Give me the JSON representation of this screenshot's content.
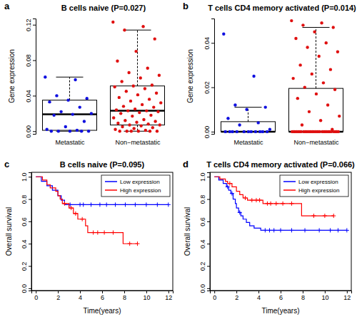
{
  "chart_data": [
    {
      "type": "box",
      "panel_label": "a",
      "title": "B cells naive (P=0.027)",
      "y_label": "Gene expression",
      "categories": [
        "Metastatic",
        "Non−metastatic"
      ],
      "colors": [
        "#1010e0",
        "#e01010"
      ],
      "ylim": [
        -0.003,
        0.127
      ],
      "yticks": [
        {
          "value": 0,
          "label": "0.00"
        },
        {
          "value": 0.04,
          "label": "0.04"
        },
        {
          "value": 0.08,
          "label": "0.08"
        },
        {
          "value": 0.12,
          "label": "0.12"
        }
      ],
      "boxes": [
        {
          "min": 0,
          "q1": 0.001,
          "median": 0.019,
          "q3": 0.035,
          "max": 0.061
        },
        {
          "min": 0,
          "q1": 0.007,
          "median": 0.023,
          "q3": 0.051,
          "max": 0.114
        }
      ],
      "points": [
        [
          0.061,
          0.058,
          0.04,
          0.037,
          0.035,
          0.033,
          0.027,
          0.022,
          0.02,
          0.019,
          0.018,
          0.011,
          0.005,
          0.002,
          0.001,
          0,
          0,
          0,
          0,
          0
        ],
        [
          0.123,
          0.118,
          0.114,
          0.104,
          0.09,
          0.079,
          0.071,
          0.066,
          0.063,
          0.06,
          0.056,
          0.052,
          0.051,
          0.05,
          0.048,
          0.045,
          0.043,
          0.041,
          0.038,
          0.036,
          0.034,
          0.032,
          0.03,
          0.028,
          0.027,
          0.025,
          0.024,
          0.023,
          0.023,
          0.022,
          0.021,
          0.02,
          0.018,
          0.017,
          0.015,
          0.013,
          0.012,
          0.011,
          0.01,
          0.009,
          0.008,
          0.007,
          0.007,
          0.006,
          0.005,
          0.004,
          0.003,
          0.002,
          0.001,
          0,
          0,
          0,
          0,
          0,
          0
        ]
      ]
    },
    {
      "type": "box",
      "panel_label": "b",
      "title": "T cells CD4 memory activated (P=0.014)",
      "y_label": "Gene expression",
      "categories": [
        "Metastatic",
        "Non−metastatic"
      ],
      "colors": [
        "#1010e0",
        "#e01010"
      ],
      "ylim": [
        -0.001,
        0.051
      ],
      "yticks": [
        {
          "value": 0,
          "label": "0.00"
        },
        {
          "value": 0.02,
          "label": "0.02"
        },
        {
          "value": 0.04,
          "label": "0.04"
        }
      ],
      "boxes": [
        {
          "min": 0,
          "q1": 0,
          "median": 0,
          "q3": 0.0045,
          "max": 0.011
        },
        {
          "min": 0,
          "q1": 0,
          "median": 0,
          "q3": 0.0195,
          "max": 0.047
        }
      ],
      "points": [
        [
          0.044,
          0.025,
          0.012,
          0.011,
          0.01,
          0.006,
          0.004,
          0.003,
          0.001,
          0,
          0,
          0,
          0,
          0,
          0,
          0,
          0,
          0,
          0,
          0
        ],
        [
          0.05,
          0.049,
          0.048,
          0.047,
          0.045,
          0.042,
          0.04,
          0.038,
          0.036,
          0.034,
          0.03,
          0.028,
          0.026,
          0.024,
          0.022,
          0.02,
          0.019,
          0.017,
          0.015,
          0.012,
          0.009,
          0.007,
          0.005,
          0.003,
          0.001,
          0,
          0,
          0,
          0,
          0,
          0,
          0,
          0,
          0,
          0,
          0,
          0,
          0,
          0,
          0,
          0,
          0,
          0,
          0,
          0,
          0,
          0,
          0,
          0,
          0,
          0,
          0,
          0,
          0,
          0
        ]
      ]
    },
    {
      "type": "step",
      "panel_label": "c",
      "title": "B cells naive (P=0.095)",
      "x_label": "Time(years)",
      "y_label": "Overall survival",
      "xlim": [
        -0.4,
        12.4
      ],
      "xticks": [
        0,
        2,
        4,
        6,
        8,
        10,
        12
      ],
      "ylim": [
        -0.02,
        1.04
      ],
      "yticks": [
        {
          "value": 0,
          "label": "0.0"
        },
        {
          "value": 0.2,
          "label": "0.2"
        },
        {
          "value": 0.4,
          "label": "0.4"
        },
        {
          "value": 0.6,
          "label": "0.6"
        },
        {
          "value": 0.8,
          "label": "0.8"
        },
        {
          "value": 1,
          "label": "1.0"
        }
      ],
      "legend": "top-right",
      "series": [
        {
          "name": "Low expression",
          "color": "#0000ff",
          "x": [
            0,
            0.5,
            1.0,
            1.5,
            2.0,
            2.3,
            2.6,
            12.0
          ],
          "values": [
            1,
            0.96,
            0.92,
            0.88,
            0.83,
            0.79,
            0.75,
            0.75
          ],
          "censor_x": [
            3.1,
            4.0,
            4.3,
            5.0,
            5.8,
            6.4,
            7.2,
            8.1,
            9.0,
            10.0,
            11.0,
            12.0
          ],
          "censor_y": [
            0.75,
            0.75,
            0.75,
            0.75,
            0.75,
            0.75,
            0.75,
            0.75,
            0.75,
            0.75,
            0.75,
            0.75
          ]
        },
        {
          "name": "High expression",
          "color": "#ff0000",
          "x": [
            0,
            0.6,
            1.0,
            1.3,
            1.8,
            2.0,
            2.2,
            2.4,
            3.0,
            3.4,
            3.8,
            4.5,
            4.7,
            7.9,
            9.2
          ],
          "values": [
            1,
            0.97,
            0.93,
            0.9,
            0.87,
            0.83,
            0.8,
            0.76,
            0.72,
            0.67,
            0.62,
            0.56,
            0.5,
            0.4,
            0.4
          ],
          "censor_x": [
            2.6,
            3.2,
            3.6,
            4.2,
            5.2,
            5.6,
            6.2,
            7.0,
            8.5,
            9.2
          ],
          "censor_y": [
            0.76,
            0.72,
            0.67,
            0.62,
            0.5,
            0.5,
            0.5,
            0.5,
            0.4,
            0.4
          ]
        }
      ]
    },
    {
      "type": "step",
      "panel_label": "d",
      "title": "T cells CD4 memory activated (P=0.066)",
      "x_label": "Time(years)",
      "y_label": "Overall survival",
      "xlim": [
        -0.4,
        12.4
      ],
      "xticks": [
        0,
        2,
        4,
        6,
        8,
        10,
        12
      ],
      "ylim": [
        -0.02,
        1.04
      ],
      "yticks": [
        {
          "value": 0,
          "label": "0.0"
        },
        {
          "value": 0.2,
          "label": "0.2"
        },
        {
          "value": 0.4,
          "label": "0.4"
        },
        {
          "value": 0.6,
          "label": "0.6"
        },
        {
          "value": 0.8,
          "label": "0.8"
        },
        {
          "value": 1,
          "label": "1.0"
        }
      ],
      "legend": "top-right",
      "series": [
        {
          "name": "Low expression",
          "color": "#0000ff",
          "x": [
            0,
            0.4,
            0.8,
            1.1,
            1.3,
            1.5,
            1.7,
            1.9,
            2.0,
            2.2,
            2.4,
            2.6,
            2.9,
            3.2,
            3.6,
            4.2,
            12.0
          ],
          "values": [
            1,
            0.97,
            0.94,
            0.91,
            0.88,
            0.85,
            0.8,
            0.76,
            0.72,
            0.68,
            0.65,
            0.62,
            0.59,
            0.56,
            0.54,
            0.52,
            0.52
          ],
          "censor_x": [
            1.2,
            1.6,
            2.3,
            4.6,
            5.0,
            5.4,
            6.0,
            7.0,
            8.2,
            9.5,
            10.5,
            11.2,
            12.0
          ],
          "censor_y": [
            0.91,
            0.85,
            0.68,
            0.52,
            0.52,
            0.52,
            0.52,
            0.52,
            0.52,
            0.52,
            0.52,
            0.52,
            0.52
          ]
        },
        {
          "name": "High expression",
          "color": "#ff0000",
          "x": [
            0,
            0.5,
            1.0,
            1.2,
            1.6,
            2.0,
            2.3,
            2.6,
            3.0,
            4.4,
            7.9,
            10.8
          ],
          "values": [
            1,
            0.98,
            0.96,
            0.94,
            0.91,
            0.87,
            0.84,
            0.81,
            0.79,
            0.76,
            0.65,
            0.65
          ],
          "censor_x": [
            1.4,
            2.8,
            3.4,
            3.8,
            4.1,
            4.8,
            5.1,
            5.6,
            6.2,
            7.0,
            9.0,
            10.0,
            10.8
          ],
          "censor_y": [
            0.94,
            0.81,
            0.79,
            0.79,
            0.79,
            0.76,
            0.76,
            0.76,
            0.76,
            0.76,
            0.65,
            0.65,
            0.65
          ]
        }
      ]
    }
  ]
}
